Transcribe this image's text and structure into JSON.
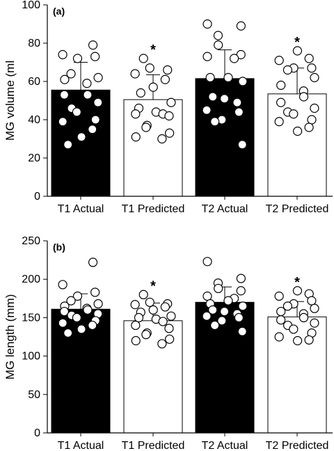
{
  "figure_colors": {
    "actual_fill": "#000000",
    "predicted_fill": "#ffffff",
    "point_fill": "#ffffff",
    "stroke": "#000000"
  },
  "chart_data": [
    {
      "type": "bar",
      "panel_label": "(a)",
      "ylabel": "MG volume (ml",
      "ylim": [
        0,
        100
      ],
      "yticks": [
        0,
        20,
        40,
        60,
        80,
        100
      ],
      "categories": [
        "T1 Actual",
        "T1 Predicted",
        "T2 Actual",
        "T2 Predicted"
      ],
      "values": [
        55.5,
        50.5,
        61.5,
        53.5
      ],
      "sd": [
        14.5,
        13,
        15,
        13.5
      ],
      "significance": [
        "",
        "*",
        "",
        "*"
      ],
      "points": [
        [
          79,
          74,
          73,
          72,
          64,
          62,
          61,
          59,
          53,
          53,
          49,
          46,
          44,
          40,
          39,
          35,
          31,
          27
        ],
        [
          72,
          67,
          66,
          64,
          61,
          57,
          54,
          49,
          46,
          44,
          43,
          43,
          42,
          37,
          36,
          33,
          31,
          30
        ],
        [
          90,
          89,
          84,
          79,
          74,
          73,
          72,
          62,
          62,
          60,
          52,
          51,
          49,
          45,
          44,
          40,
          39,
          27
        ],
        [
          76,
          72,
          71,
          67,
          67,
          66,
          62,
          58,
          55,
          52,
          49,
          46,
          44,
          43,
          40,
          39,
          36,
          34
        ]
      ]
    },
    {
      "type": "bar",
      "panel_label": "(b)",
      "ylabel": "MG length (mm)",
      "ylim": [
        0,
        250
      ],
      "yticks": [
        0,
        50,
        100,
        150,
        200,
        250
      ],
      "categories": [
        "T1 Actual",
        "T1 Predicted",
        "T2 Actual",
        "T2 Predicted"
      ],
      "values": [
        161,
        146,
        170,
        151
      ],
      "sd": [
        20,
        23,
        20,
        20
      ],
      "significance": [
        "",
        "*",
        "",
        "*"
      ],
      "points": [
        [
          222,
          193,
          183,
          178,
          172,
          168,
          165,
          162,
          160,
          158,
          155,
          153,
          150,
          146,
          143,
          140,
          135,
          130
        ],
        [
          180,
          170,
          168,
          167,
          164,
          160,
          157,
          152,
          150,
          148,
          145,
          140,
          136,
          130,
          128,
          122,
          120,
          116
        ],
        [
          223,
          201,
          195,
          188,
          185,
          178,
          175,
          172,
          168,
          165,
          160,
          158,
          155,
          152,
          150,
          146,
          140,
          132
        ],
        [
          185,
          181,
          178,
          172,
          168,
          165,
          162,
          158,
          155,
          150,
          147,
          143,
          140,
          135,
          130,
          125,
          121,
          120
        ]
      ]
    }
  ]
}
